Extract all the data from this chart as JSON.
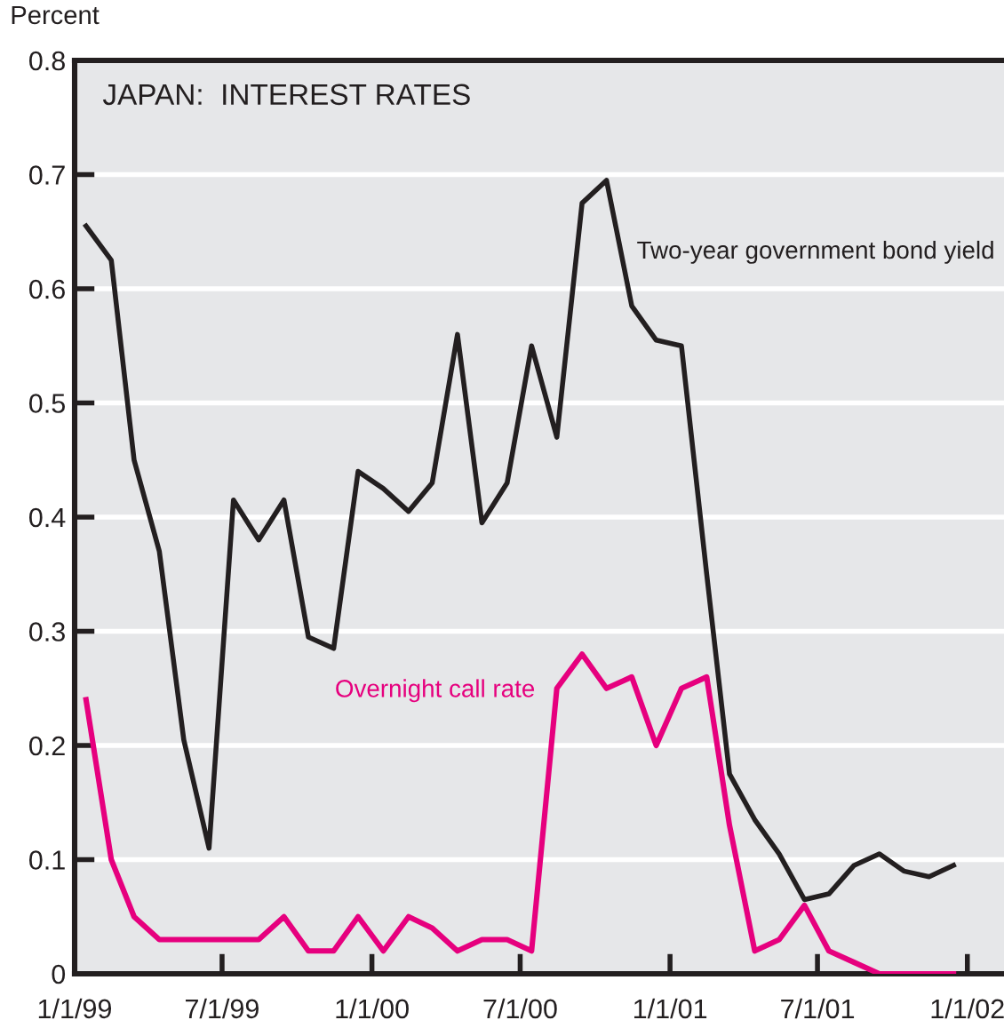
{
  "chart_data": {
    "type": "line",
    "title": "JAPAN:  INTEREST RATES",
    "ylabel": "Percent",
    "x": [
      "1999-01-15",
      "1999-02-15",
      "1999-03-15",
      "1999-04-15",
      "1999-05-15",
      "1999-06-15",
      "1999-07-15",
      "1999-08-15",
      "1999-09-15",
      "1999-10-15",
      "1999-11-15",
      "1999-12-15",
      "2000-01-15",
      "2000-02-15",
      "2000-03-15",
      "2000-04-15",
      "2000-05-15",
      "2000-06-15",
      "2000-07-15",
      "2000-08-15",
      "2000-09-15",
      "2000-10-15",
      "2000-11-15",
      "2000-12-15",
      "2001-01-15",
      "2001-02-15",
      "2001-03-15",
      "2001-04-15",
      "2001-05-15",
      "2001-06-15",
      "2001-07-15",
      "2001-08-15",
      "2001-09-15",
      "2001-10-15",
      "2001-11-15",
      "2001-12-15"
    ],
    "series": [
      {
        "name": "Two-year government bond yield",
        "color": "#231f20",
        "values": [
          0.655,
          0.625,
          0.45,
          0.37,
          0.205,
          0.11,
          0.415,
          0.38,
          0.415,
          0.295,
          0.285,
          0.44,
          0.425,
          0.405,
          0.43,
          0.56,
          0.395,
          0.43,
          0.55,
          0.47,
          0.675,
          0.695,
          0.585,
          0.555,
          0.55,
          0.35,
          0.175,
          0.135,
          0.105,
          0.065,
          0.07,
          0.095,
          0.105,
          0.09,
          0.085,
          0.095
        ]
      },
      {
        "name": "Overnight call rate",
        "color": "#e6007e",
        "values": [
          0.24,
          0.1,
          0.05,
          0.03,
          0.03,
          0.03,
          0.03,
          0.03,
          0.05,
          0.02,
          0.02,
          0.05,
          0.02,
          0.05,
          0.04,
          0.02,
          0.03,
          0.03,
          0.02,
          0.25,
          0.28,
          0.25,
          0.26,
          0.2,
          0.25,
          0.26,
          0.13,
          0.02,
          0.03,
          0.06,
          0.02,
          0.01,
          0.0,
          0.0,
          0.0,
          0.0
        ]
      }
    ],
    "xlim": [
      "1999-01-01",
      "2002-02-15"
    ],
    "xticks": [
      {
        "value": "1999-01-01",
        "label": "1/1/99"
      },
      {
        "value": "1999-07-01",
        "label": "7/1/99"
      },
      {
        "value": "2000-01-01",
        "label": "1/1/00"
      },
      {
        "value": "2000-07-01",
        "label": "7/1/00"
      },
      {
        "value": "2001-01-01",
        "label": "1/1/01"
      },
      {
        "value": "2001-07-01",
        "label": "7/1/01"
      },
      {
        "value": "2002-01-01",
        "label": "1/1/02"
      }
    ],
    "ylim": [
      0,
      0.8
    ],
    "yticks": [
      0,
      0.1,
      0.2,
      0.3,
      0.4,
      0.5,
      0.6,
      0.7,
      0.8
    ],
    "grid": "y",
    "legend": false,
    "marker": "none",
    "line_style": "solid"
  }
}
